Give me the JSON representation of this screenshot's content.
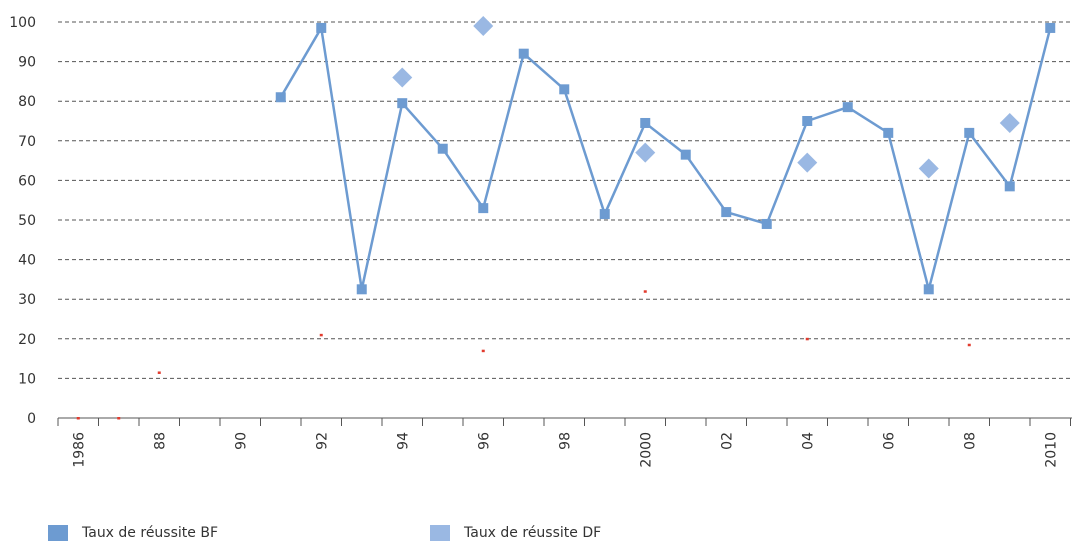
{
  "chart_data": {
    "type": "line",
    "x_ticks": [
      "1986",
      "88",
      "90",
      "92",
      "94",
      "96",
      "98",
      "2000",
      "02",
      "04",
      "06",
      "08",
      "2010"
    ],
    "ylim": [
      0,
      100
    ],
    "y_ticks": [
      0,
      10,
      20,
      30,
      40,
      50,
      60,
      70,
      80,
      90,
      100
    ],
    "grid": true,
    "legend_position": "bottom",
    "series": [
      {
        "name": "Taux de réussite BF",
        "color": "#6d9bd1",
        "marker": "square",
        "line": true,
        "points": [
          {
            "x": 1991,
            "y": 81
          },
          {
            "x": 1992,
            "y": 98.5
          },
          {
            "x": 1993,
            "y": 32.5
          },
          {
            "x": 1994,
            "y": 79.5
          },
          {
            "x": 1995,
            "y": 68
          },
          {
            "x": 1996,
            "y": 53
          },
          {
            "x": 1997,
            "y": 92
          },
          {
            "x": 1998,
            "y": 83
          },
          {
            "x": 1999,
            "y": 51.5
          },
          {
            "x": 2000,
            "y": 74.5
          },
          {
            "x": 2001,
            "y": 66.5
          },
          {
            "x": 2002,
            "y": 52
          },
          {
            "x": 2003,
            "y": 49
          },
          {
            "x": 2004,
            "y": 75
          },
          {
            "x": 2005,
            "y": 78.5
          },
          {
            "x": 2006,
            "y": 72
          },
          {
            "x": 2007,
            "y": 32.5
          },
          {
            "x": 2008,
            "y": 72
          },
          {
            "x": 2009,
            "y": 58.5
          },
          {
            "x": 2010,
            "y": 98.5
          }
        ]
      },
      {
        "name": "Taux de réussite DF",
        "color": "#9ab8e3",
        "marker": "diamond",
        "line": false,
        "points": [
          {
            "x": 1994,
            "y": 86
          },
          {
            "x": 1996,
            "y": 99
          },
          {
            "x": 2000,
            "y": 67
          },
          {
            "x": 2004,
            "y": 64.5
          },
          {
            "x": 2007,
            "y": 63
          },
          {
            "x": 2009,
            "y": 74.5
          }
        ]
      },
      {
        "name": "",
        "color": "#e23b2e",
        "marker": "dot",
        "line": false,
        "points": [
          {
            "x": 1986,
            "y": 0
          },
          {
            "x": 1987,
            "y": 0
          },
          {
            "x": 1988,
            "y": 11.5
          },
          {
            "x": 1992,
            "y": 21
          },
          {
            "x": 1996,
            "y": 17
          },
          {
            "x": 2000,
            "y": 32
          },
          {
            "x": 2004,
            "y": 20
          },
          {
            "x": 2008,
            "y": 18.5
          }
        ]
      }
    ]
  }
}
